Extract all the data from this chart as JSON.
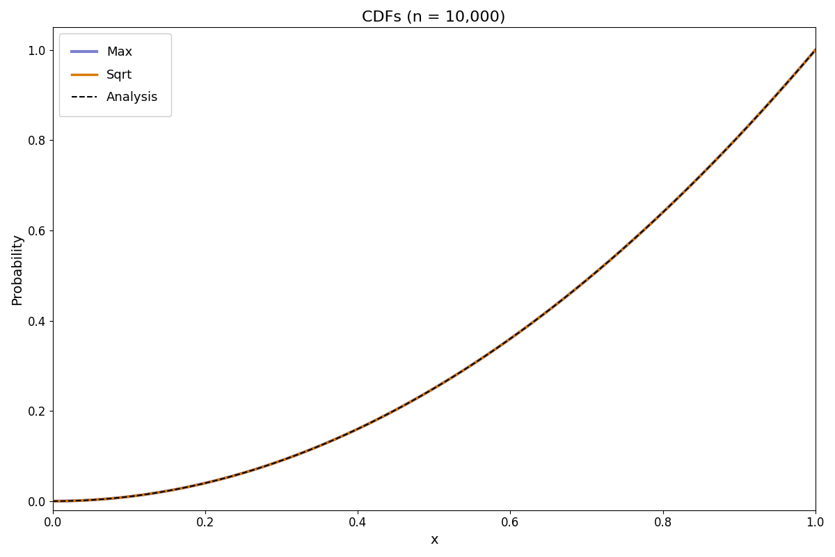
{
  "title": "CDFs (n = 10,000)",
  "xlabel": "x",
  "ylabel": "Probability",
  "xlim": [
    0.0,
    1.0
  ],
  "ylim": [
    -0.02,
    1.05
  ],
  "n_points": 10000,
  "max_color": "#7b7fce",
  "sqrt_color": "#d97800",
  "analysis_color": "#000000",
  "max_label": "Max",
  "sqrt_label": "Sqrt",
  "analysis_label": "Analysis",
  "max_linewidth": 3.0,
  "sqrt_linewidth": 2.5,
  "dashed_linewidth": 1.5,
  "title_fontsize": 16,
  "label_fontsize": 14,
  "tick_fontsize": 12,
  "legend_fontsize": 13,
  "figsize": [
    12.0,
    8.0
  ],
  "dpi": 100
}
